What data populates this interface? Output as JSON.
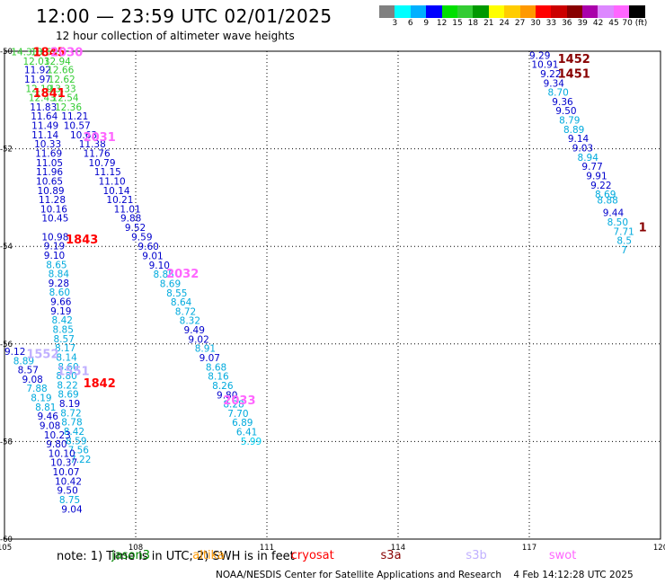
{
  "title": "12:00 — 23:59 UTC 02/01/2025",
  "subtitle": "12 hour collection of altimeter wave heights",
  "colorbar": {
    "colors": [
      "#808080",
      "#00ffff",
      "#00b0ff",
      "#0000ff",
      "#00e000",
      "#33cc33",
      "#009900",
      "#ffff00",
      "#ffcc00",
      "#ff9900",
      "#ff0000",
      "#cc0000",
      "#880000",
      "#aa00aa",
      "#dd88ff",
      "#ff66ff",
      "#000000"
    ],
    "labels": [
      "3",
      "6",
      "9",
      "12",
      "15",
      "18",
      "21",
      "24",
      "27",
      "30",
      "33",
      "36",
      "39",
      "42",
      "45",
      "70 (ft)"
    ]
  },
  "map": {
    "lon_ticks": [
      "105",
      "108",
      "111",
      "114",
      "117",
      "120"
    ],
    "lat_ticks": [
      "-50",
      "-52",
      "-54",
      "-56",
      "-58",
      "-60"
    ],
    "observations": [
      {
        "lon": 105.15,
        "lat": -50.01,
        "v": "14.33",
        "c": "#33cc33"
      },
      {
        "lon": 105.6,
        "lat": -50.01,
        "v": "13.63",
        "c": "#33cc33"
      },
      {
        "lon": 105.42,
        "lat": -50.2,
        "v": "12.03",
        "c": "#33cc33"
      },
      {
        "lon": 105.9,
        "lat": -50.2,
        "v": "12.94",
        "c": "#33cc33"
      },
      {
        "lon": 105.45,
        "lat": -50.38,
        "v": "11.92",
        "c": "#0000cc"
      },
      {
        "lon": 105.97,
        "lat": -50.38,
        "v": "12.66",
        "c": "#33cc33"
      },
      {
        "lon": 105.45,
        "lat": -50.57,
        "v": "11.97",
        "c": "#0000cc"
      },
      {
        "lon": 106.0,
        "lat": -50.57,
        "v": "12.62",
        "c": "#33cc33"
      },
      {
        "lon": 105.48,
        "lat": -50.76,
        "v": "12.19",
        "c": "#33cc33"
      },
      {
        "lon": 106.02,
        "lat": -50.76,
        "v": "13.33",
        "c": "#33cc33"
      },
      {
        "lon": 105.55,
        "lat": -50.95,
        "v": "12.43",
        "c": "#33cc33"
      },
      {
        "lon": 106.08,
        "lat": -50.95,
        "v": "12.54",
        "c": "#33cc33"
      },
      {
        "lon": 105.58,
        "lat": -51.14,
        "v": "11.83",
        "c": "#0000cc"
      },
      {
        "lon": 106.15,
        "lat": -51.14,
        "v": "12.36",
        "c": "#33cc33"
      },
      {
        "lon": 105.6,
        "lat": -51.33,
        "v": "11.64",
        "c": "#0000cc"
      },
      {
        "lon": 106.3,
        "lat": -51.33,
        "v": "11.21",
        "c": "#0000cc"
      },
      {
        "lon": 105.62,
        "lat": -51.52,
        "v": "11.49",
        "c": "#0000cc"
      },
      {
        "lon": 106.35,
        "lat": -51.52,
        "v": "10.57",
        "c": "#0000cc"
      },
      {
        "lon": 105.62,
        "lat": -51.71,
        "v": "11.14",
        "c": "#0000cc"
      },
      {
        "lon": 106.5,
        "lat": -51.71,
        "v": "10.63",
        "c": "#0000cc"
      },
      {
        "lon": 105.68,
        "lat": -51.9,
        "v": "10.33",
        "c": "#0000cc"
      },
      {
        "lon": 106.7,
        "lat": -51.9,
        "v": "11.38",
        "c": "#0000cc"
      },
      {
        "lon": 105.7,
        "lat": -52.09,
        "v": "11.69",
        "c": "#0000cc"
      },
      {
        "lon": 106.8,
        "lat": -52.09,
        "v": "11.76",
        "c": "#0000cc"
      },
      {
        "lon": 105.72,
        "lat": -52.28,
        "v": "11.05",
        "c": "#0000cc"
      },
      {
        "lon": 106.92,
        "lat": -52.28,
        "v": "10.79",
        "c": "#0000cc"
      },
      {
        "lon": 105.72,
        "lat": -52.47,
        "v": "11.96",
        "c": "#0000cc"
      },
      {
        "lon": 107.05,
        "lat": -52.47,
        "v": "11.15",
        "c": "#0000cc"
      },
      {
        "lon": 105.72,
        "lat": -52.66,
        "v": "10.65",
        "c": "#0000cc"
      },
      {
        "lon": 107.15,
        "lat": -52.66,
        "v": "11.10",
        "c": "#0000cc"
      },
      {
        "lon": 105.75,
        "lat": -52.85,
        "v": "10.89",
        "c": "#0000cc"
      },
      {
        "lon": 107.25,
        "lat": -52.85,
        "v": "10.14",
        "c": "#0000cc"
      },
      {
        "lon": 105.78,
        "lat": -53.04,
        "v": "11.28",
        "c": "#0000cc"
      },
      {
        "lon": 107.33,
        "lat": -53.04,
        "v": "10.21",
        "c": "#0000cc"
      },
      {
        "lon": 105.82,
        "lat": -53.23,
        "v": "10.16",
        "c": "#0000cc"
      },
      {
        "lon": 107.5,
        "lat": -53.23,
        "v": "11.01",
        "c": "#0000cc"
      },
      {
        "lon": 105.85,
        "lat": -53.42,
        "v": "10.45",
        "c": "#0000cc"
      },
      {
        "lon": 107.65,
        "lat": -53.42,
        "v": "9.88",
        "c": "#0000cc"
      },
      {
        "lon": 105.85,
        "lat": -53.8,
        "v": "10.98",
        "c": "#0000cc"
      },
      {
        "lon": 107.75,
        "lat": -53.61,
        "v": "9.52",
        "c": "#0000cc"
      },
      {
        "lon": 105.9,
        "lat": -53.99,
        "v": "9.19",
        "c": "#0000cc"
      },
      {
        "lon": 107.9,
        "lat": -53.8,
        "v": "9.59",
        "c": "#0000cc"
      },
      {
        "lon": 105.9,
        "lat": -54.18,
        "v": "9.10",
        "c": "#0000cc"
      },
      {
        "lon": 108.05,
        "lat": -54.0,
        "v": "9.60",
        "c": "#0000cc"
      },
      {
        "lon": 105.95,
        "lat": -54.37,
        "v": "8.65",
        "c": "#00aadd"
      },
      {
        "lon": 108.15,
        "lat": -54.19,
        "v": "9.01",
        "c": "#0000cc"
      },
      {
        "lon": 106.0,
        "lat": -54.56,
        "v": "8.84",
        "c": "#00aadd"
      },
      {
        "lon": 108.3,
        "lat": -54.38,
        "v": "9.10",
        "c": "#0000cc"
      },
      {
        "lon": 106.0,
        "lat": -54.75,
        "v": "9.28",
        "c": "#0000cc"
      },
      {
        "lon": 108.4,
        "lat": -54.57,
        "v": "8.85",
        "c": "#00aadd"
      },
      {
        "lon": 106.02,
        "lat": -54.94,
        "v": "8.60",
        "c": "#00aadd"
      },
      {
        "lon": 108.55,
        "lat": -54.76,
        "v": "8.69",
        "c": "#00aadd"
      },
      {
        "lon": 106.05,
        "lat": -55.13,
        "v": "9.66",
        "c": "#0000cc"
      },
      {
        "lon": 108.7,
        "lat": -54.95,
        "v": "8.55",
        "c": "#00aadd"
      },
      {
        "lon": 106.05,
        "lat": -55.32,
        "v": "9.19",
        "c": "#0000cc"
      },
      {
        "lon": 108.8,
        "lat": -55.14,
        "v": "8.64",
        "c": "#00aadd"
      },
      {
        "lon": 106.08,
        "lat": -55.51,
        "v": "8.42",
        "c": "#00aadd"
      },
      {
        "lon": 108.9,
        "lat": -55.33,
        "v": "8.72",
        "c": "#00aadd"
      },
      {
        "lon": 106.1,
        "lat": -55.7,
        "v": "8.85",
        "c": "#00aadd"
      },
      {
        "lon": 109.0,
        "lat": -55.52,
        "v": "8.32",
        "c": "#00aadd"
      },
      {
        "lon": 106.12,
        "lat": -55.89,
        "v": "8.57",
        "c": "#00aadd"
      },
      {
        "lon": 109.1,
        "lat": -55.71,
        "v": "9.49",
        "c": "#0000cc"
      },
      {
        "lon": 106.15,
        "lat": -56.08,
        "v": "8.17",
        "c": "#00aadd"
      },
      {
        "lon": 109.2,
        "lat": -55.9,
        "v": "9.02",
        "c": "#0000cc"
      },
      {
        "lon": 106.18,
        "lat": -56.27,
        "v": "8.14",
        "c": "#00aadd"
      },
      {
        "lon": 109.35,
        "lat": -56.09,
        "v": "8.91",
        "c": "#00aadd"
      },
      {
        "lon": 106.22,
        "lat": -56.46,
        "v": "8.60",
        "c": "#00aadd"
      },
      {
        "lon": 109.45,
        "lat": -56.28,
        "v": "9.07",
        "c": "#0000cc"
      },
      {
        "lon": 106.18,
        "lat": -56.65,
        "v": "8.80",
        "c": "#00aadd"
      },
      {
        "lon": 109.6,
        "lat": -56.47,
        "v": "8.68",
        "c": "#00aadd"
      },
      {
        "lon": 106.2,
        "lat": -56.84,
        "v": "8.22",
        "c": "#00aadd"
      },
      {
        "lon": 109.65,
        "lat": -56.66,
        "v": "8.16",
        "c": "#00aadd"
      },
      {
        "lon": 106.22,
        "lat": -57.03,
        "v": "8.69",
        "c": "#00aadd"
      },
      {
        "lon": 109.75,
        "lat": -56.85,
        "v": "8.26",
        "c": "#00aadd"
      },
      {
        "lon": 106.25,
        "lat": -57.22,
        "v": "8.19",
        "c": "#0000cc"
      },
      {
        "lon": 109.85,
        "lat": -57.04,
        "v": "9.80",
        "c": "#0000cc"
      },
      {
        "lon": 106.28,
        "lat": -57.41,
        "v": "8.72",
        "c": "#00aadd"
      },
      {
        "lon": 110.0,
        "lat": -57.23,
        "v": "8.28",
        "c": "#00aadd"
      },
      {
        "lon": 106.3,
        "lat": -57.6,
        "v": "8.78",
        "c": "#00aadd"
      },
      {
        "lon": 110.1,
        "lat": -57.42,
        "v": "7.70",
        "c": "#00aadd"
      },
      {
        "lon": 106.35,
        "lat": -57.79,
        "v": "8.42",
        "c": "#00aadd"
      },
      {
        "lon": 110.2,
        "lat": -57.61,
        "v": "6.89",
        "c": "#00aadd"
      },
      {
        "lon": 106.4,
        "lat": -57.98,
        "v": "8.59",
        "c": "#00aadd"
      },
      {
        "lon": 110.3,
        "lat": -57.8,
        "v": "6.41",
        "c": "#00aadd"
      },
      {
        "lon": 106.45,
        "lat": -58.17,
        "v": "7.56",
        "c": "#00aadd"
      },
      {
        "lon": 110.4,
        "lat": -57.99,
        "v": "5.99",
        "c": "#00ccee"
      },
      {
        "lon": 106.5,
        "lat": -58.36,
        "v": "7.22",
        "c": "#00aadd"
      },
      {
        "lon": 105.0,
        "lat": -56.15,
        "v": "9.12",
        "c": "#0000cc"
      },
      {
        "lon": 105.2,
        "lat": -56.34,
        "v": "8.89",
        "c": "#00aadd"
      },
      {
        "lon": 105.3,
        "lat": -56.53,
        "v": "8.57",
        "c": "#0000cc"
      },
      {
        "lon": 105.4,
        "lat": -56.72,
        "v": "9.08",
        "c": "#0000cc"
      },
      {
        "lon": 105.5,
        "lat": -56.91,
        "v": "7.88",
        "c": "#00aadd"
      },
      {
        "lon": 105.6,
        "lat": -57.1,
        "v": "8.19",
        "c": "#00aadd"
      },
      {
        "lon": 105.7,
        "lat": -57.29,
        "v": "8.81",
        "c": "#00aadd"
      },
      {
        "lon": 105.75,
        "lat": -57.48,
        "v": "9.46",
        "c": "#0000cc"
      },
      {
        "lon": 105.8,
        "lat": -57.67,
        "v": "9.08",
        "c": "#0000cc"
      },
      {
        "lon": 105.9,
        "lat": -57.86,
        "v": "10.23",
        "c": "#0000cc"
      },
      {
        "lon": 105.95,
        "lat": -58.05,
        "v": "9.80",
        "c": "#0000cc"
      },
      {
        "lon": 106.0,
        "lat": -58.24,
        "v": "10.10",
        "c": "#0000cc"
      },
      {
        "lon": 106.05,
        "lat": -58.43,
        "v": "10.37",
        "c": "#0000cc"
      },
      {
        "lon": 106.1,
        "lat": -58.62,
        "v": "10.07",
        "c": "#0000cc"
      },
      {
        "lon": 106.15,
        "lat": -58.81,
        "v": "10.42",
        "c": "#0000cc"
      },
      {
        "lon": 106.2,
        "lat": -59.0,
        "v": "9.50",
        "c": "#0000cc"
      },
      {
        "lon": 106.25,
        "lat": -59.19,
        "v": "8.75",
        "c": "#00aadd"
      },
      {
        "lon": 106.3,
        "lat": -59.38,
        "v": "9.04",
        "c": "#0000cc"
      },
      {
        "lon": 117.0,
        "lat": -50.08,
        "v": "9.29",
        "c": "#0000cc"
      },
      {
        "lon": 117.05,
        "lat": -50.27,
        "v": "10.91",
        "c": "#0000cc"
      },
      {
        "lon": 117.25,
        "lat": -50.46,
        "v": "9.22",
        "c": "#0000cc"
      },
      {
        "lon": 117.32,
        "lat": -50.65,
        "v": "9.34",
        "c": "#0000cc"
      },
      {
        "lon": 117.42,
        "lat": -50.84,
        "v": "8.70",
        "c": "#00aadd"
      },
      {
        "lon": 117.52,
        "lat": -51.03,
        "v": "9.36",
        "c": "#0000cc"
      },
      {
        "lon": 117.6,
        "lat": -51.22,
        "v": "9.50",
        "c": "#0000cc"
      },
      {
        "lon": 117.68,
        "lat": -51.41,
        "v": "8.79",
        "c": "#00aadd"
      },
      {
        "lon": 117.78,
        "lat": -51.6,
        "v": "8.89",
        "c": "#00aadd"
      },
      {
        "lon": 117.88,
        "lat": -51.79,
        "v": "9.14",
        "c": "#0000cc"
      },
      {
        "lon": 117.98,
        "lat": -51.98,
        "v": "9.03",
        "c": "#0000cc"
      },
      {
        "lon": 118.1,
        "lat": -52.17,
        "v": "8.94",
        "c": "#00aadd"
      },
      {
        "lon": 118.2,
        "lat": -52.36,
        "v": "9.77",
        "c": "#0000cc"
      },
      {
        "lon": 118.3,
        "lat": -52.55,
        "v": "9.91",
        "c": "#0000cc"
      },
      {
        "lon": 118.4,
        "lat": -52.74,
        "v": "9.22",
        "c": "#0000cc"
      },
      {
        "lon": 118.5,
        "lat": -52.93,
        "v": "8.69",
        "c": "#00aadd"
      },
      {
        "lon": 118.55,
        "lat": -53.05,
        "v": "8.88",
        "c": "#00aadd"
      },
      {
        "lon": 118.68,
        "lat": -53.31,
        "v": "9.44",
        "c": "#0000cc"
      },
      {
        "lon": 118.78,
        "lat": -53.5,
        "v": "8.50",
        "c": "#00aadd"
      },
      {
        "lon": 118.92,
        "lat": -53.69,
        "v": "7.71",
        "c": "#00aadd"
      },
      {
        "lon": 119.0,
        "lat": -53.88,
        "v": "8.5",
        "c": "#00aadd"
      },
      {
        "lon": 119.1,
        "lat": -54.07,
        "v": "7",
        "c": "#00aadd"
      }
    ],
    "pass_labels": [
      {
        "lon": 105.65,
        "lat": -50.01,
        "t": "1845",
        "c": "#ff0000"
      },
      {
        "lon": 106.05,
        "lat": -50.01,
        "t": "2030",
        "c": "#ff66ff"
      },
      {
        "lon": 105.65,
        "lat": -50.85,
        "t": "1841",
        "c": "#ff0000"
      },
      {
        "lon": 106.8,
        "lat": -51.75,
        "t": "2031",
        "c": "#ff66ff"
      },
      {
        "lon": 106.4,
        "lat": -53.85,
        "t": "1843",
        "c": "#ff0000"
      },
      {
        "lon": 108.7,
        "lat": -54.55,
        "t": "2032",
        "c": "#ff66ff"
      },
      {
        "lon": 105.5,
        "lat": -56.2,
        "t": "1552",
        "c": "#c0b0ff"
      },
      {
        "lon": 106.2,
        "lat": -56.55,
        "t": "1551",
        "c": "#c0b0ff"
      },
      {
        "lon": 106.8,
        "lat": -56.8,
        "t": "1842",
        "c": "#ff0000"
      },
      {
        "lon": 110.0,
        "lat": -57.15,
        "t": "2033",
        "c": "#ff66ff"
      },
      {
        "lon": 117.65,
        "lat": -50.15,
        "t": "1452",
        "c": "#880000"
      },
      {
        "lon": 117.65,
        "lat": -50.45,
        "t": "1451",
        "c": "#880000"
      },
      {
        "lon": 119.5,
        "lat": -53.6,
        "t": "1",
        "c": "#880000"
      }
    ]
  },
  "note": "note: 1) Time is in UTC; 2) SWH is in feet",
  "legend": [
    {
      "t": "jason3",
      "c": "#008800",
      "lon": 107.45
    },
    {
      "t": "altika",
      "c": "#ff9900",
      "lon": 109.3
    },
    {
      "t": "cryosat",
      "c": "#ff0000",
      "lon": 111.55
    },
    {
      "t": "s3a",
      "c": "#880000",
      "lon": 113.6
    },
    {
      "t": "s3b",
      "c": "#c0b0ff",
      "lon": 115.55
    },
    {
      "t": "swot",
      "c": "#ff66ff",
      "lon": 117.45
    }
  ],
  "footer": "NOAA/NESDIS Center for Satellite Applications and Research    4 Feb 14:12:28 UTC 2025"
}
